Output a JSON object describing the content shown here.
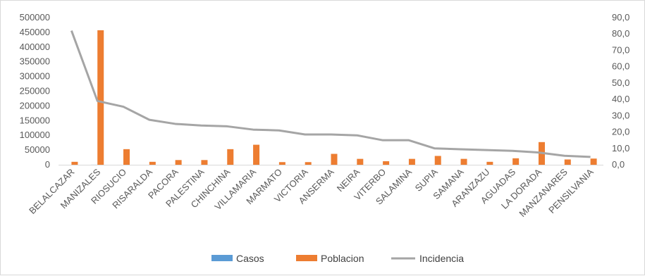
{
  "chart_data": {
    "type": "bar",
    "categories": [
      "BELALCAZAR",
      "MANIZALES",
      "RIOSUCIO",
      "RISARALDA",
      "PACORA",
      "PALESTINA",
      "CHINCHINA",
      "VILLAMARIA",
      "MARMATO",
      "VICTORIA",
      "ANSERMA",
      "NEIRA",
      "VITERBO",
      "SALAMINA",
      "SUPIA",
      "SAMANA",
      "ARANZAZU",
      "AGUADAS",
      "LA DORADA",
      "MANZANARES",
      "PENSILVANIA"
    ],
    "series": [
      {
        "name": "Casos",
        "type": "bar",
        "axis": "left",
        "color": "#5b9bd5",
        "values": [
          8,
          180,
          19,
          3,
          4,
          4,
          13,
          15,
          2,
          2,
          7,
          4,
          2,
          3,
          3,
          2,
          1,
          2,
          6,
          1,
          1
        ]
      },
      {
        "name": "Poblacion",
        "type": "bar",
        "axis": "left",
        "color": "#ed7d31",
        "values": [
          10000,
          457000,
          53000,
          10000,
          16000,
          16000,
          53000,
          68000,
          9000,
          9000,
          37000,
          20000,
          12000,
          20000,
          30000,
          20000,
          10000,
          22000,
          77000,
          18000,
          21000
        ]
      },
      {
        "name": "Incidencia",
        "type": "line",
        "axis": "right",
        "color": "#a5a5a5",
        "values": [
          82.0,
          39.0,
          35.5,
          27.5,
          25.0,
          24.0,
          23.5,
          21.5,
          21.0,
          18.5,
          18.5,
          18.0,
          15.0,
          15.0,
          10.0,
          9.5,
          9.0,
          8.5,
          7.5,
          5.5,
          4.8
        ]
      }
    ],
    "y_left": {
      "min": 0,
      "max": 500000,
      "ticks": [
        "0",
        "50000",
        "100000",
        "150000",
        "200000",
        "250000",
        "300000",
        "350000",
        "400000",
        "450000",
        "500000"
      ]
    },
    "y_right": {
      "min": 0,
      "max": 90,
      "ticks": [
        "0,0",
        "10,0",
        "20,0",
        "30,0",
        "40,0",
        "50,0",
        "60,0",
        "70,0",
        "80,0",
        "90,0"
      ]
    },
    "legend_position": "bottom",
    "grid": false
  }
}
